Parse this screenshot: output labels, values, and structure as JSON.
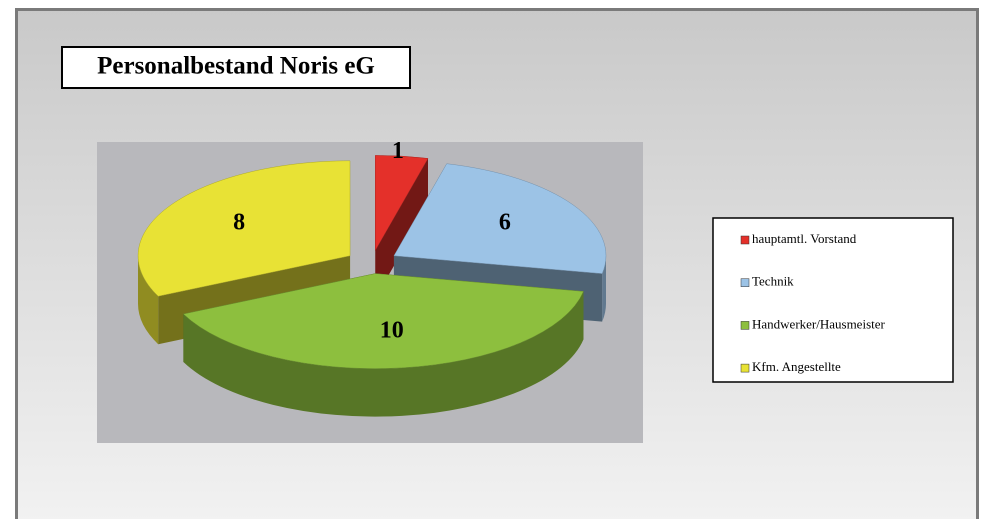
{
  "chart_data": {
    "type": "pie3d",
    "title": "Personalbestand Noris eG",
    "categories": [
      "hauptamtl. Vorstand",
      "Technik",
      "Handwerker/Hausmeister",
      "Kfm. Angestellte"
    ],
    "values": [
      1,
      6,
      10,
      8
    ],
    "colors": [
      "#e4302a",
      "#9cc3e6",
      "#8dbf3e",
      "#e8e235"
    ],
    "legend": "right"
  }
}
